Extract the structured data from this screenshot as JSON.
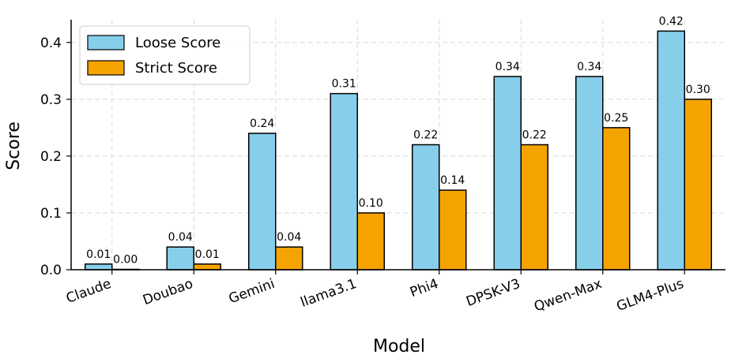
{
  "chart_data": {
    "type": "bar",
    "xlabel": "Model",
    "ylabel": "Score",
    "categories": [
      "Claude",
      "Doubao",
      "Gemini",
      "llama3.1",
      "Phi4",
      "DPSK-V3",
      "Qwen-Max",
      "GLM4-Plus"
    ],
    "series": [
      {
        "name": "Loose Score",
        "color": "#87ceeb",
        "values": [
          0.01,
          0.04,
          0.24,
          0.31,
          0.22,
          0.34,
          0.34,
          0.42
        ],
        "labels": [
          "0.01",
          "0.04",
          "0.24",
          "0.31",
          "0.22",
          "0.34",
          "0.34",
          "0.42"
        ]
      },
      {
        "name": "Strict Score",
        "color": "#f5a300",
        "values": [
          0.0,
          0.01,
          0.04,
          0.1,
          0.14,
          0.22,
          0.25,
          0.3
        ],
        "labels": [
          "0.00",
          "0.01",
          "0.04",
          "0.10",
          "0.14",
          "0.22",
          "0.25",
          "0.30"
        ]
      }
    ],
    "ylim": [
      0,
      0.44
    ],
    "yticks": [
      0.0,
      0.1,
      0.2,
      0.3,
      0.4
    ],
    "ytick_labels": [
      "0.0",
      "0.1",
      "0.2",
      "0.3",
      "0.4"
    ],
    "grid": true,
    "legend_position": "top-left"
  }
}
